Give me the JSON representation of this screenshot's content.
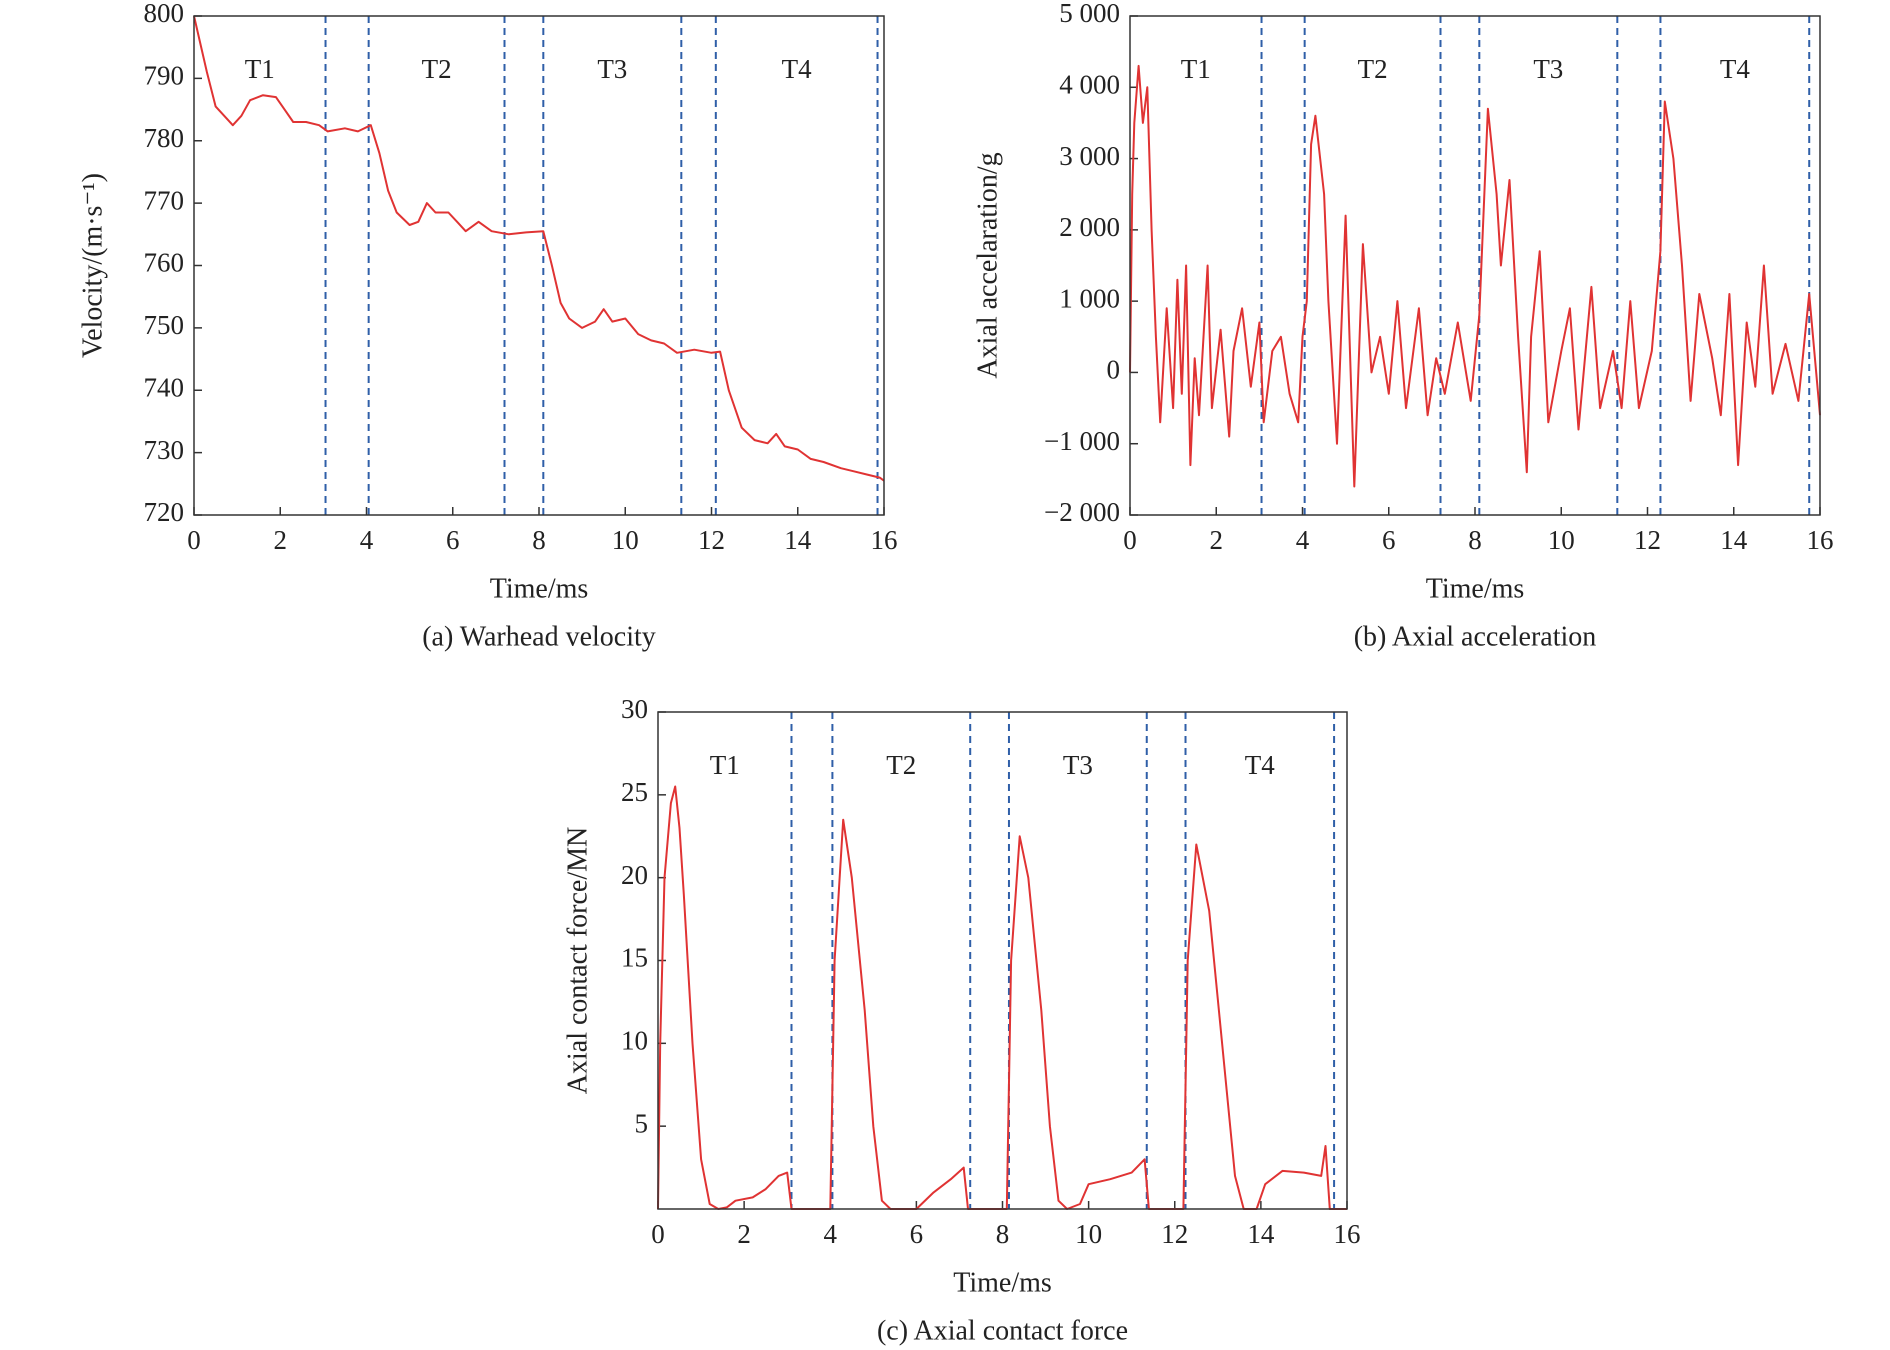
{
  "chart_data": [
    {
      "type": "line",
      "ylabel": "Velocity/(m·s⁻¹)",
      "xlabel": "Time/ms",
      "caption": "(a) Warhead velocity",
      "annotations": [
        "T1",
        "T2",
        "T3",
        "T4"
      ],
      "vlines": [
        3.05,
        4.05,
        7.2,
        8.1,
        11.3,
        12.1,
        15.85
      ],
      "vline_color": "#2f5fa8",
      "xlim": [
        0,
        16
      ],
      "xticks": [
        0,
        2,
        4,
        6,
        8,
        10,
        12,
        14,
        16
      ],
      "ylim": [
        720,
        800
      ],
      "yticks": [
        720,
        730,
        740,
        750,
        760,
        770,
        780,
        790,
        800
      ],
      "x": [
        0,
        0.3,
        0.5,
        0.7,
        0.9,
        1.1,
        1.3,
        1.6,
        1.9,
        2.1,
        2.3,
        2.6,
        2.9,
        3.1,
        3.5,
        3.8,
        4.1,
        4.3,
        4.5,
        4.7,
        5.0,
        5.2,
        5.4,
        5.6,
        5.9,
        6.1,
        6.3,
        6.6,
        6.9,
        7.3,
        7.7,
        8.1,
        8.3,
        8.5,
        8.7,
        9.0,
        9.3,
        9.5,
        9.7,
        10.0,
        10.3,
        10.6,
        10.9,
        11.2,
        11.6,
        12.0,
        12.2,
        12.4,
        12.7,
        13.0,
        13.3,
        13.5,
        13.7,
        14.0,
        14.3,
        14.6,
        15.0,
        15.3,
        15.6,
        15.9,
        16
      ],
      "series": [
        {
          "color": "#e03333",
          "values": [
            800,
            791,
            785.5,
            784,
            782.5,
            784,
            786.5,
            787.3,
            787,
            785,
            783,
            783,
            782.5,
            781.5,
            782,
            781.5,
            782.5,
            778,
            772,
            768.5,
            766.5,
            767,
            770,
            768.5,
            768.5,
            767,
            765.5,
            767,
            765.5,
            765,
            765.3,
            765.5,
            760,
            754,
            751.5,
            750,
            751,
            753,
            751,
            751.5,
            749,
            748,
            747.5,
            746,
            746.5,
            746,
            746.2,
            740,
            734,
            732,
            731.5,
            733,
            731,
            730.5,
            729,
            728.5,
            727.5,
            727,
            726.5,
            726,
            725.5
          ]
        }
      ]
    },
    {
      "type": "line",
      "ylabel": "Axial accelaration/g",
      "xlabel": "Time/ms",
      "caption": "(b) Axial acceleration",
      "annotations": [
        "T1",
        "T2",
        "T3",
        "T4"
      ],
      "vlines": [
        3.05,
        4.05,
        7.2,
        8.1,
        11.3,
        12.3,
        15.75
      ],
      "vline_color": "#2f5fa8",
      "xlim": [
        0,
        16
      ],
      "xticks": [
        0,
        2,
        4,
        6,
        8,
        10,
        12,
        14,
        16
      ],
      "ylim": [
        -2000,
        5000
      ],
      "yticks": [
        {
          "value": -2000,
          "label": "−2 000"
        },
        {
          "value": -1000,
          "label": "−1 000"
        },
        0,
        {
          "value": 1000,
          "label": "1 000"
        },
        {
          "value": 2000,
          "label": "2 000"
        },
        {
          "value": 3000,
          "label": "3 000"
        },
        {
          "value": 4000,
          "label": "4 000"
        },
        {
          "value": 5000,
          "label": "5 000"
        }
      ],
      "x": [
        0,
        0.05,
        0.1,
        0.2,
        0.3,
        0.4,
        0.5,
        0.6,
        0.7,
        0.85,
        1.0,
        1.1,
        1.2,
        1.3,
        1.4,
        1.5,
        1.6,
        1.8,
        1.9,
        2.1,
        2.3,
        2.4,
        2.6,
        2.8,
        3.0,
        3.1,
        3.3,
        3.5,
        3.7,
        3.9,
        4.0,
        4.1,
        4.2,
        4.3,
        4.5,
        4.6,
        4.8,
        5.0,
        5.2,
        5.4,
        5.6,
        5.8,
        6.0,
        6.2,
        6.4,
        6.7,
        6.9,
        7.1,
        7.3,
        7.6,
        7.9,
        8.1,
        8.3,
        8.5,
        8.6,
        8.8,
        9.0,
        9.2,
        9.3,
        9.5,
        9.7,
        10.0,
        10.2,
        10.4,
        10.7,
        10.9,
        11.2,
        11.4,
        11.6,
        11.8,
        12.1,
        12.3,
        12.4,
        12.6,
        12.8,
        13.0,
        13.2,
        13.5,
        13.7,
        13.9,
        14.1,
        14.3,
        14.5,
        14.7,
        14.9,
        15.2,
        15.5,
        15.75,
        16.0
      ],
      "series": [
        {
          "color": "#e03333",
          "values": [
            0,
            2500,
            3500,
            4300,
            3500,
            4000,
            2000,
            500,
            -700,
            900,
            -500,
            1300,
            -300,
            1500,
            -1300,
            200,
            -600,
            1500,
            -500,
            600,
            -900,
            300,
            900,
            -200,
            700,
            -700,
            300,
            500,
            -300,
            -700,
            500,
            1000,
            3200,
            3600,
            2500,
            1000,
            -1000,
            2200,
            -1600,
            1800,
            0,
            500,
            -300,
            1000,
            -500,
            900,
            -600,
            200,
            -300,
            700,
            -400,
            800,
            3700,
            2500,
            1500,
            2700,
            500,
            -1400,
            500,
            1700,
            -700,
            300,
            900,
            -800,
            1200,
            -500,
            300,
            -500,
            1000,
            -500,
            300,
            1700,
            3800,
            3000,
            1500,
            -400,
            1100,
            200,
            -600,
            1100,
            -1300,
            700,
            -200,
            1500,
            -300,
            400,
            -400,
            1100,
            -600
          ]
        }
      ]
    },
    {
      "type": "line",
      "ylabel": "Axial contact force/MN",
      "xlabel": "Time/ms",
      "caption": "(c) Axial contact force",
      "annotations": [
        "T1",
        "T2",
        "T3",
        "T4"
      ],
      "vlines": [
        3.1,
        4.05,
        7.25,
        8.15,
        11.35,
        12.25,
        15.7
      ],
      "vline_color": "#2f5fa8",
      "xlim": [
        0,
        16
      ],
      "xticks": [
        0,
        2,
        4,
        6,
        8,
        10,
        12,
        14,
        16
      ],
      "ylim": [
        0,
        30
      ],
      "yticks": [
        5,
        10,
        15,
        20,
        25,
        30
      ],
      "x": [
        0,
        0.05,
        0.15,
        0.3,
        0.4,
        0.5,
        0.6,
        0.8,
        1.0,
        1.2,
        1.4,
        1.6,
        1.8,
        2.2,
        2.5,
        2.8,
        3.0,
        3.1,
        4.0,
        4.1,
        4.3,
        4.5,
        4.8,
        5.0,
        5.2,
        5.4,
        6.0,
        6.4,
        6.8,
        7.1,
        7.2,
        8.1,
        8.2,
        8.4,
        8.6,
        8.9,
        9.1,
        9.3,
        9.5,
        9.8,
        10.0,
        10.5,
        11.0,
        11.3,
        11.4,
        12.2,
        12.3,
        12.5,
        12.8,
        13.1,
        13.4,
        13.6,
        13.9,
        14.1,
        14.5,
        15.0,
        15.4,
        15.5,
        15.6,
        16
      ],
      "series": [
        {
          "color": "#e03333",
          "values": [
            0,
            10,
            20,
            24.5,
            25.5,
            23,
            19,
            10,
            3,
            0.3,
            0,
            0.1,
            0.5,
            0.7,
            1.2,
            2,
            2.2,
            0,
            0,
            15,
            23.5,
            20,
            12,
            5,
            0.5,
            0,
            0,
            1,
            1.8,
            2.5,
            0,
            0,
            15,
            22.5,
            20,
            12,
            5,
            0.5,
            0,
            0.3,
            1.5,
            1.8,
            2.2,
            3,
            0,
            0,
            15,
            22,
            18,
            10,
            2,
            0,
            0,
            1.5,
            2.3,
            2.2,
            2,
            3.8,
            0,
            0
          ]
        }
      ]
    }
  ]
}
